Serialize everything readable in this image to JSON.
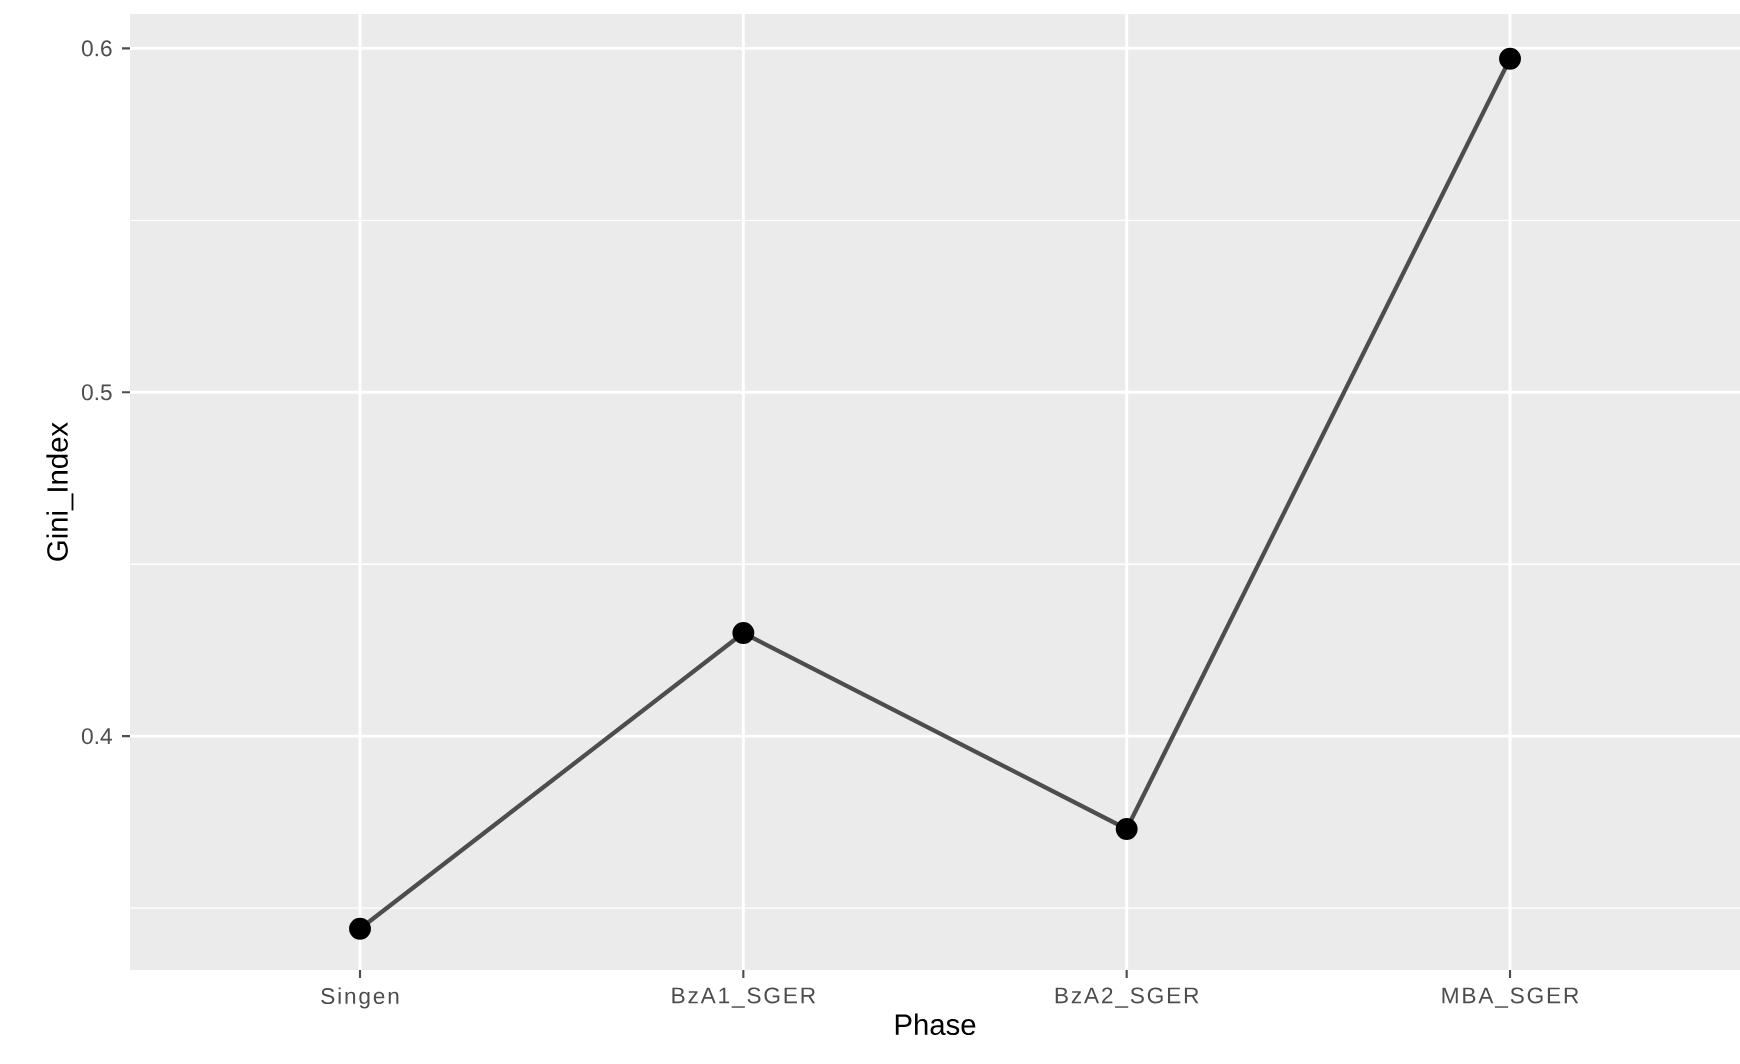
{
  "chart_data": {
    "type": "line",
    "xlabel": "Phase",
    "ylabel": "Gini_Index",
    "categories": [
      "Singen",
      "BzA1_SGER",
      "BzA2_SGER",
      "MBA_SGER"
    ],
    "values": [
      0.344,
      0.43,
      0.373,
      0.597
    ],
    "color": "#4d4d4d",
    "marker": "circle",
    "line_style": "solid",
    "ylim": [
      0.332,
      0.61
    ],
    "yticks": [
      0.4,
      0.5,
      0.6
    ],
    "grid": true
  }
}
